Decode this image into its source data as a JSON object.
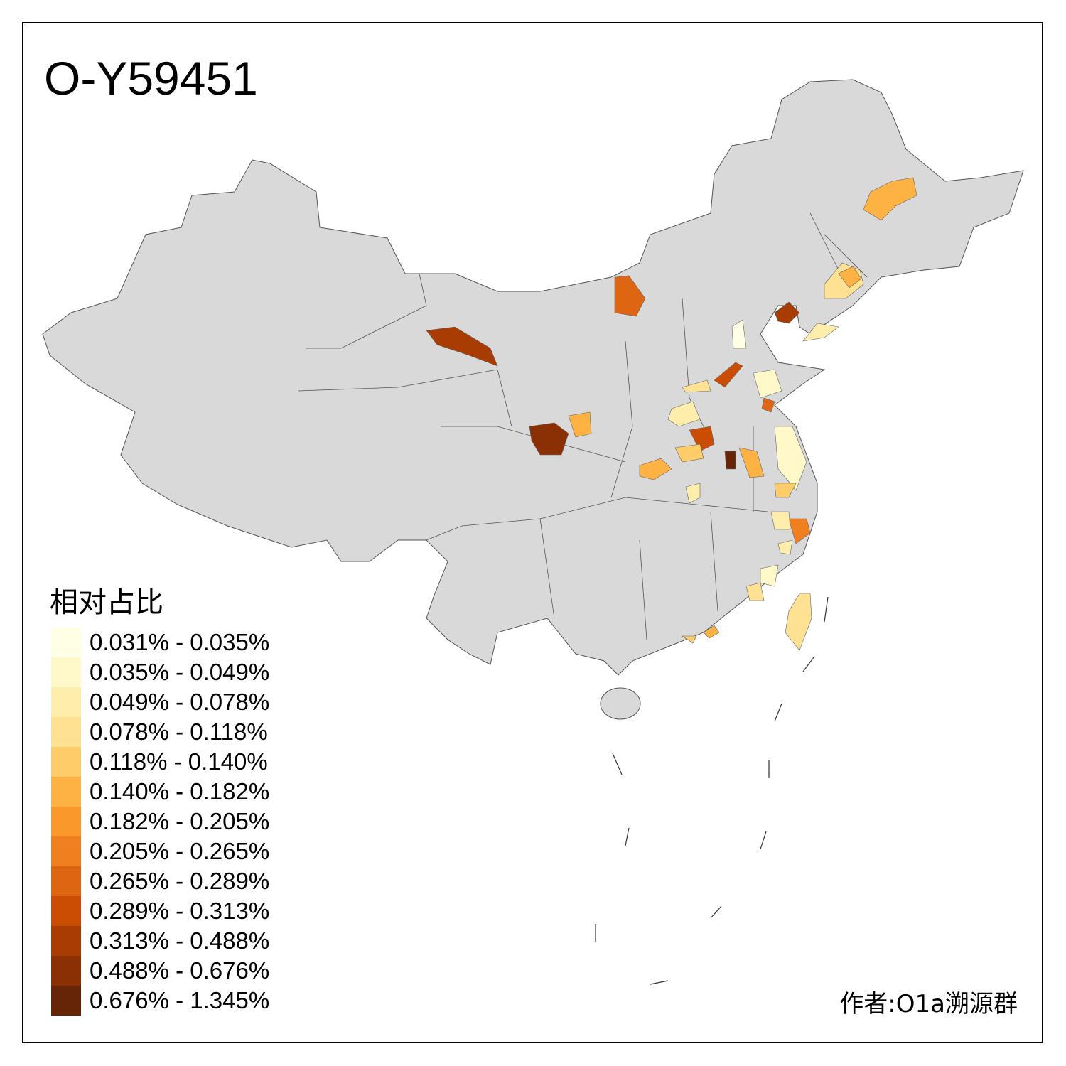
{
  "title": "O-Y59451",
  "legend": {
    "title": "相对占比",
    "items": [
      {
        "label": "0.031% - 0.035%",
        "color": "#FFFFE5"
      },
      {
        "label": "0.035% - 0.049%",
        "color": "#FFF8C8"
      },
      {
        "label": "0.049% - 0.078%",
        "color": "#FEEDAB"
      },
      {
        "label": "0.078% - 0.118%",
        "color": "#FEE193"
      },
      {
        "label": "0.118% - 0.140%",
        "color": "#FECC68"
      },
      {
        "label": "0.140% - 0.182%",
        "color": "#FEB244"
      },
      {
        "label": "0.182% - 0.205%",
        "color": "#FB982C"
      },
      {
        "label": "0.205% - 0.265%",
        "color": "#EF7F1F"
      },
      {
        "label": "0.265% - 0.289%",
        "color": "#DE6612"
      },
      {
        "label": "0.289% - 0.313%",
        "color": "#CB4D04"
      },
      {
        "label": "0.313% - 0.488%",
        "color": "#A93C03"
      },
      {
        "label": "0.488% - 0.676%",
        "color": "#8A3004"
      },
      {
        "label": "0.676% - 1.345%",
        "color": "#662507"
      }
    ]
  },
  "base_color": "#D9D9D9",
  "author": "作者:O1a溯源群"
}
